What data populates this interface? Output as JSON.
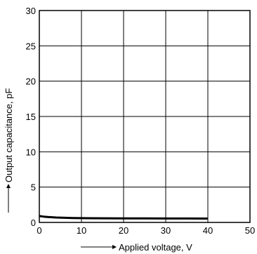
{
  "chart_data": {
    "type": "line",
    "title": "",
    "xlabel": "Applied voltage, V",
    "ylabel": "Output capacitance, pF",
    "xlim": [
      0,
      50
    ],
    "ylim": [
      0,
      30
    ],
    "x_ticks": [
      0,
      10,
      20,
      30,
      40,
      50
    ],
    "y_ticks": [
      0,
      5,
      10,
      15,
      20,
      25,
      30
    ],
    "grid": true,
    "series": [
      {
        "x": [
          0,
          1,
          2,
          4,
          6,
          8,
          10,
          15,
          20,
          25,
          30,
          35,
          40
        ],
        "y": [
          0.9,
          0.82,
          0.76,
          0.7,
          0.66,
          0.63,
          0.61,
          0.59,
          0.58,
          0.57,
          0.56,
          0.56,
          0.55
        ]
      }
    ]
  }
}
